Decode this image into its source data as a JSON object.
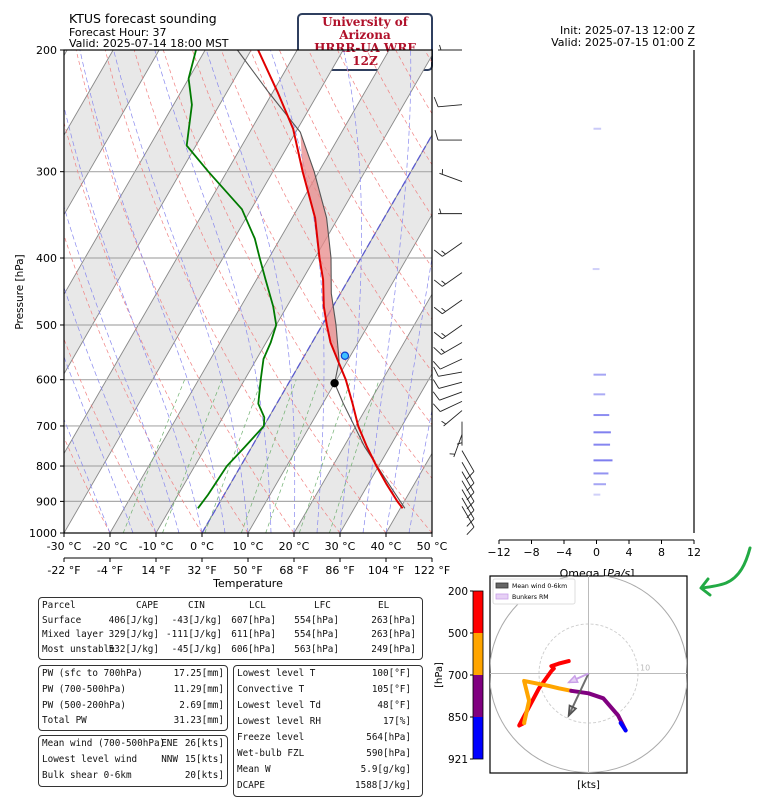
{
  "header": {
    "title": "KTUS forecast sounding",
    "forecast_hour": "Forecast Hour: 37",
    "valid_local": "Valid: 2025-07-14 18:00 MST",
    "badge_line1": "University of Arizona",
    "badge_line2": "HRRR-UA WRF 12Z",
    "init": "Init: 2025-07-13 12:00 Z",
    "valid_utc": "Valid: 2025-07-15 01:00 Z"
  },
  "chart_data": [
    {
      "type": "line",
      "title": "KTUS forecast sounding",
      "xlabel": "Temperature",
      "ylabel": "Pressure [hPa]",
      "ylim": [
        1000,
        200
      ],
      "xlim_c": [
        -30,
        50
      ],
      "y_ticks": [
        "200",
        "300",
        "400",
        "500",
        "600",
        "700",
        "800",
        "900",
        "1000"
      ],
      "x_ticks_c": [
        "-30 °C",
        "-20 °C",
        "-10 °C",
        "0 °C",
        "10 °C",
        "20 °C",
        "30 °C",
        "40 °C",
        "50 °C"
      ],
      "x_ticks_f": [
        "-22 °F",
        "-4 °F",
        "14 °F",
        "32 °F",
        "50 °F",
        "68 °F",
        "86 °F",
        "104 °F",
        "122 °F"
      ],
      "series": [
        {
          "name": "temperature",
          "color": "#e00000",
          "points": [
            [
              921,
              40.5
            ],
            [
              900,
              38.5
            ],
            [
              850,
              34.0
            ],
            [
              800,
              29.5
            ],
            [
              750,
              25.0
            ],
            [
              700,
              20.5
            ],
            [
              650,
              16.5
            ],
            [
              600,
              12.0
            ],
            [
              564,
              8.0
            ],
            [
              530,
              4.0
            ],
            [
              500,
              1.0
            ],
            [
              470,
              -2.0
            ],
            [
              430,
              -5.5
            ],
            [
              400,
              -9.0
            ],
            [
              350,
              -15.0
            ],
            [
              300,
              -23.5
            ],
            [
              260,
              -31.0
            ],
            [
              230,
              -39.0
            ],
            [
              200,
              -48.5
            ]
          ]
        },
        {
          "name": "dewpoint",
          "color": "#007a00",
          "points": [
            [
              921,
              -4.0
            ],
            [
              880,
              -3.5
            ],
            [
              800,
              -3.0
            ],
            [
              750,
              -1.5
            ],
            [
              700,
              0.0
            ],
            [
              680,
              -1.0
            ],
            [
              650,
              -4.0
            ],
            [
              600,
              -6.5
            ],
            [
              560,
              -8.5
            ],
            [
              530,
              -9.0
            ],
            [
              500,
              -10.0
            ],
            [
              470,
              -13.0
            ],
            [
              430,
              -18.0
            ],
            [
              400,
              -22.0
            ],
            [
              375,
              -25.5
            ],
            [
              340,
              -32.0
            ],
            [
              300,
              -44.0
            ],
            [
              275,
              -52.0
            ],
            [
              240,
              -56.0
            ],
            [
              220,
              -60.0
            ],
            [
              200,
              -62.0
            ]
          ]
        },
        {
          "name": "parcel",
          "color": "#555555",
          "points": [
            [
              921,
              41.0
            ],
            [
              850,
              34.5
            ],
            [
              750,
              24.5
            ],
            [
              650,
              14.5
            ],
            [
              607,
              10.0
            ],
            [
              564,
              8.2
            ],
            [
              500,
              3.0
            ],
            [
              450,
              -2.0
            ],
            [
              400,
              -6.5
            ],
            [
              350,
              -12.5
            ],
            [
              300,
              -21.0
            ],
            [
              263,
              -29.0
            ],
            [
              230,
              -41.0
            ],
            [
              200,
              -53.0
            ]
          ]
        }
      ],
      "markers": [
        {
          "name": "LFC",
          "pressure": 554,
          "temp_c": 8.8,
          "color": "#1e90ff"
        },
        {
          "name": "LCL",
          "pressure": 607,
          "temp_c": 10.0,
          "color": "#000000"
        }
      ]
    },
    {
      "type": "bar",
      "xlabel": "Omega [Pa/s]",
      "xlim": [
        -12,
        12
      ],
      "x_ticks": [
        "−12",
        "−8",
        "−4",
        "0",
        "4",
        "8",
        "12"
      ],
      "bars": [
        {
          "pressure": 260,
          "omega": 0.2
        },
        {
          "pressure": 415,
          "omega": -0.1
        },
        {
          "pressure": 590,
          "omega": 0.8
        },
        {
          "pressure": 630,
          "omega": 0.7
        },
        {
          "pressure": 675,
          "omega": 1.2
        },
        {
          "pressure": 715,
          "omega": 1.4
        },
        {
          "pressure": 745,
          "omega": 1.3
        },
        {
          "pressure": 785,
          "omega": 1.6
        },
        {
          "pressure": 820,
          "omega": 1.1
        },
        {
          "pressure": 850,
          "omega": 0.8
        },
        {
          "pressure": 880,
          "omega": 0.1
        }
      ]
    },
    {
      "type": "line",
      "title": "hodograph",
      "xlabel": "[kts]",
      "colorbar_label": "[hPa]",
      "colorbar_ticks": [
        "200",
        "500",
        "700",
        "850",
        "921"
      ],
      "colorbar_colors": [
        "#ff0000",
        "#ffa500",
        "#800080",
        "#0000ff"
      ],
      "ring_label": "10",
      "legend": [
        "Mean wind 0-6km",
        "Bunkers RM"
      ],
      "segments": [
        {
          "range": "921-850",
          "color": "#0000ff",
          "points": [
            [
              7.5,
              -11.5
            ],
            [
              6.5,
              -10.0
            ]
          ]
        },
        {
          "range": "850-700",
          "color": "#800080",
          "points": [
            [
              7.5,
              -11.5
            ],
            [
              6.0,
              -8.5
            ],
            [
              3.0,
              -5.0
            ],
            [
              0.0,
              -4.0
            ],
            [
              -3.5,
              -3.5
            ]
          ]
        },
        {
          "range": "700-500",
          "color": "#ffa500",
          "points": [
            [
              -3.5,
              -3.5
            ],
            [
              -6.0,
              -3.0
            ],
            [
              -8.0,
              -2.5
            ],
            [
              -13.0,
              -1.5
            ],
            [
              -12.0,
              -5.5
            ],
            [
              -13.0,
              -10.0
            ]
          ]
        },
        {
          "range": "500-200",
          "color": "#ff0000",
          "points": [
            [
              -13.0,
              -10.0
            ],
            [
              -14.0,
              -10.5
            ],
            [
              -10.0,
              -3.0
            ],
            [
              -7.5,
              0.5
            ],
            [
              -7.0,
              1.0
            ],
            [
              -7.5,
              1.5
            ],
            [
              -6.0,
              2.0
            ],
            [
              -4.0,
              2.5
            ]
          ]
        }
      ],
      "mean_wind_0_6km": [
        -4.0,
        -8.5
      ],
      "bunkers_rm": [
        -4.0,
        -1.8
      ]
    }
  ],
  "parcel_table": {
    "headers": [
      "Parcel",
      "CAPE",
      "CIN",
      "LCL",
      "LFC",
      "EL"
    ],
    "rows": [
      [
        "Surface",
        "406[J/kg]",
        "-43[J/kg]",
        "607[hPa]",
        "554[hPa]",
        "263[hPa]"
      ],
      [
        "Mixed layer",
        "329[J/kg]",
        "-111[J/kg]",
        "611[hPa]",
        "554[hPa]",
        "263[hPa]"
      ],
      [
        "Most unstable",
        "532[J/kg]",
        "-45[J/kg]",
        "606[hPa]",
        "563[hPa]",
        "249[hPa]"
      ]
    ]
  },
  "pw_table": [
    [
      "PW (sfc to 700hPa)",
      "17.25[mm]"
    ],
    [
      "PW (700-500hPa)",
      "11.29[mm]"
    ],
    [
      "PW (500-200hPa)",
      "2.69[mm]"
    ],
    [
      "Total PW",
      "31.23[mm]"
    ]
  ],
  "wind_table": [
    [
      "Mean wind (700-500hPa)",
      "ENE",
      "26[kts]"
    ],
    [
      "Lowest level wind",
      "NNW",
      "15[kts]"
    ],
    [
      "Bulk shear 0-6km",
      "",
      "20[kts]"
    ]
  ],
  "thermo_table": [
    [
      "Lowest level T",
      "100[°F]"
    ],
    [
      "Convective T",
      "105[°F]"
    ],
    [
      "Lowest level Td",
      "48[°F]"
    ],
    [
      "Lowest level RH",
      "17[%]"
    ],
    [
      "Freeze level",
      "564[hPa]"
    ],
    [
      "Wet-bulb FZL",
      "590[hPa]"
    ],
    [
      "Mean W",
      "5.9[g/kg]"
    ],
    [
      "DCAPE",
      "1588[J/kg]"
    ]
  ],
  "wind_barbs": [
    {
      "pressure": 200,
      "dir": 270,
      "speed": 5
    },
    {
      "pressure": 240,
      "dir": 265,
      "speed": 10
    },
    {
      "pressure": 270,
      "dir": 270,
      "speed": 10
    },
    {
      "pressure": 310,
      "dir": 290,
      "speed": 5
    },
    {
      "pressure": 345,
      "dir": 270,
      "speed": 5
    },
    {
      "pressure": 380,
      "dir": 235,
      "speed": 15
    },
    {
      "pressure": 420,
      "dir": 235,
      "speed": 15
    },
    {
      "pressure": 460,
      "dir": 235,
      "speed": 15
    },
    {
      "pressure": 500,
      "dir": 235,
      "speed": 15
    },
    {
      "pressure": 530,
      "dir": 240,
      "speed": 15
    },
    {
      "pressure": 560,
      "dir": 245,
      "speed": 10
    },
    {
      "pressure": 585,
      "dir": 260,
      "speed": 10
    },
    {
      "pressure": 605,
      "dir": 255,
      "speed": 10
    },
    {
      "pressure": 625,
      "dir": 250,
      "speed": 10
    },
    {
      "pressure": 645,
      "dir": 245,
      "speed": 10
    },
    {
      "pressure": 665,
      "dir": 230,
      "speed": 5
    },
    {
      "pressure": 690,
      "dir": 180,
      "speed": 5
    },
    {
      "pressure": 720,
      "dir": 200,
      "speed": 5
    },
    {
      "pressure": 760,
      "dir": 150,
      "speed": 10
    },
    {
      "pressure": 790,
      "dir": 150,
      "speed": 10
    },
    {
      "pressure": 815,
      "dir": 150,
      "speed": 10
    },
    {
      "pressure": 840,
      "dir": 150,
      "speed": 10
    },
    {
      "pressure": 865,
      "dir": 150,
      "speed": 10
    },
    {
      "pressure": 890,
      "dir": 150,
      "speed": 10
    },
    {
      "pressure": 915,
      "dir": 150,
      "speed": 10
    }
  ],
  "colors": {
    "temperature": "#e00000",
    "dewpoint": "#007a00",
    "cape_fill": "#e88a8a",
    "annotation_arrow": "#22aa44"
  }
}
